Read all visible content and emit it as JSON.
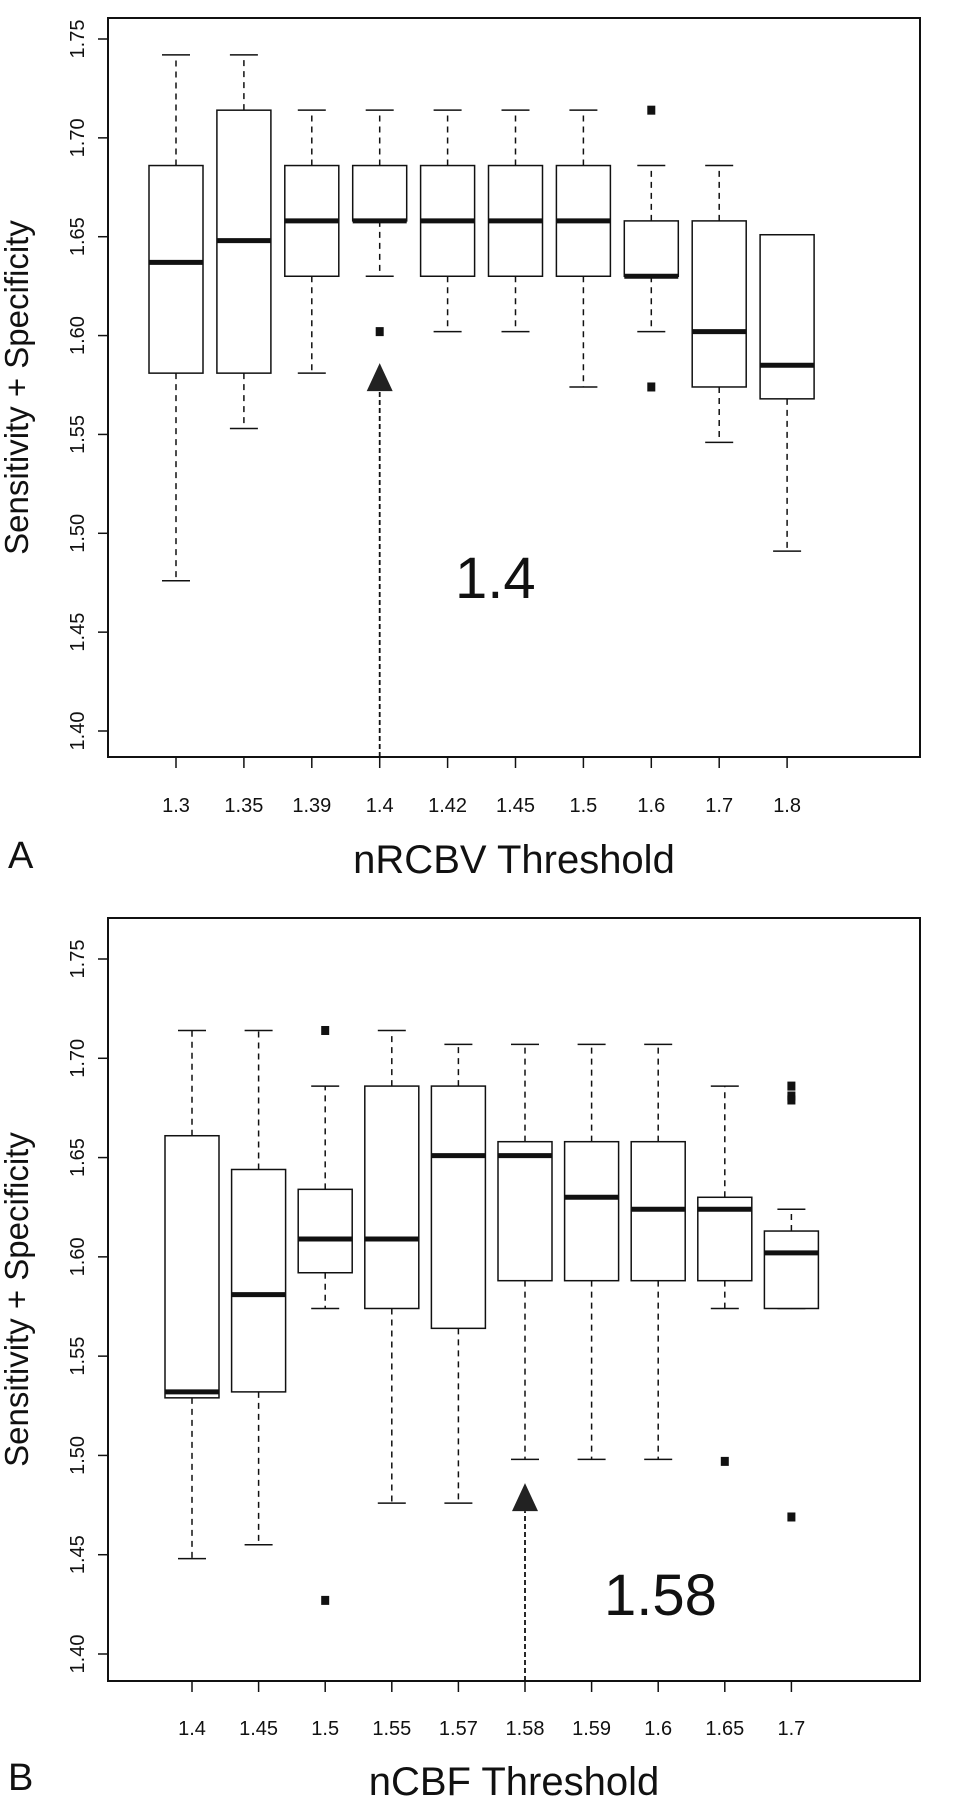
{
  "chart_data": [
    {
      "type": "boxplot",
      "panel_label": "A",
      "xlabel": "nRCBV Threshold",
      "ylabel": "Sensitivity + Specificity",
      "ylim": [
        1.38,
        1.76
      ],
      "yticks": [
        "1.40",
        "1.45",
        "1.50",
        "1.55",
        "1.60",
        "1.65",
        "1.70",
        "1.75"
      ],
      "categories": [
        "1.3",
        "1.35",
        "1.39",
        "1.4",
        "1.42",
        "1.45",
        "1.5",
        "1.6",
        "1.7",
        "1.8"
      ],
      "boxes": [
        {
          "whisker_low": 1.476,
          "q1": 1.581,
          "median": 1.637,
          "q3": 1.686,
          "whisker_high": 1.742,
          "outliers": []
        },
        {
          "whisker_low": 1.553,
          "q1": 1.581,
          "median": 1.648,
          "q3": 1.714,
          "whisker_high": 1.742,
          "outliers": []
        },
        {
          "whisker_low": 1.581,
          "q1": 1.63,
          "median": 1.658,
          "q3": 1.686,
          "whisker_high": 1.714,
          "outliers": []
        },
        {
          "whisker_low": 1.63,
          "q1": 1.658,
          "median": 1.658,
          "q3": 1.686,
          "whisker_high": 1.714,
          "outliers": [
            1.602
          ]
        },
        {
          "whisker_low": 1.602,
          "q1": 1.63,
          "median": 1.658,
          "q3": 1.686,
          "whisker_high": 1.714,
          "outliers": []
        },
        {
          "whisker_low": 1.602,
          "q1": 1.63,
          "median": 1.658,
          "q3": 1.686,
          "whisker_high": 1.714,
          "outliers": []
        },
        {
          "whisker_low": 1.574,
          "q1": 1.63,
          "median": 1.658,
          "q3": 1.686,
          "whisker_high": 1.714,
          "outliers": []
        },
        {
          "whisker_low": 1.602,
          "q1": 1.63,
          "median": 1.63,
          "q3": 1.658,
          "whisker_high": 1.686,
          "outliers": [
            1.714,
            1.574
          ]
        },
        {
          "whisker_low": 1.546,
          "q1": 1.574,
          "median": 1.602,
          "q3": 1.658,
          "whisker_high": 1.686,
          "outliers": []
        },
        {
          "whisker_low": 1.491,
          "q1": 1.568,
          "median": 1.585,
          "q3": 1.651,
          "whisker_high": 1.651,
          "outliers": []
        }
      ],
      "annotation": {
        "text": "1.4",
        "category": "1.4",
        "arrow_tip": 1.582
      }
    },
    {
      "type": "boxplot",
      "panel_label": "B",
      "xlabel": "nCBF Threshold",
      "ylabel": "Sensitivity + Specificity",
      "ylim": [
        1.38,
        1.76
      ],
      "yticks": [
        "1.40",
        "1.45",
        "1.50",
        "1.55",
        "1.60",
        "1.65",
        "1.70",
        "1.75"
      ],
      "categories": [
        "1.4",
        "1.45",
        "1.5",
        "1.55",
        "1.57",
        "1.58",
        "1.59",
        "1.6",
        "1.65",
        "1.7"
      ],
      "boxes": [
        {
          "whisker_low": 1.448,
          "q1": 1.529,
          "median": 1.532,
          "q3": 1.661,
          "whisker_high": 1.714,
          "outliers": []
        },
        {
          "whisker_low": 1.455,
          "q1": 1.532,
          "median": 1.581,
          "q3": 1.644,
          "whisker_high": 1.714,
          "outliers": []
        },
        {
          "whisker_low": 1.574,
          "q1": 1.592,
          "median": 1.609,
          "q3": 1.634,
          "whisker_high": 1.686,
          "outliers": [
            1.714,
            1.427
          ]
        },
        {
          "whisker_low": 1.476,
          "q1": 1.574,
          "median": 1.609,
          "q3": 1.686,
          "whisker_high": 1.714,
          "outliers": []
        },
        {
          "whisker_low": 1.476,
          "q1": 1.564,
          "median": 1.651,
          "q3": 1.686,
          "whisker_high": 1.707,
          "outliers": []
        },
        {
          "whisker_low": 1.498,
          "q1": 1.588,
          "median": 1.651,
          "q3": 1.658,
          "whisker_high": 1.707,
          "outliers": []
        },
        {
          "whisker_low": 1.498,
          "q1": 1.588,
          "median": 1.63,
          "q3": 1.658,
          "whisker_high": 1.707,
          "outliers": []
        },
        {
          "whisker_low": 1.498,
          "q1": 1.588,
          "median": 1.624,
          "q3": 1.658,
          "whisker_high": 1.707,
          "outliers": []
        },
        {
          "whisker_low": 1.574,
          "q1": 1.588,
          "median": 1.624,
          "q3": 1.63,
          "whisker_high": 1.686,
          "outliers": [
            1.497
          ]
        },
        {
          "whisker_low": 1.574,
          "q1": 1.574,
          "median": 1.602,
          "q3": 1.613,
          "whisker_high": 1.624,
          "outliers": [
            1.686,
            1.681,
            1.679,
            1.469
          ]
        }
      ],
      "annotation": {
        "text": "1.58",
        "category": "1.58",
        "arrow_tip": 1.482
      }
    }
  ]
}
